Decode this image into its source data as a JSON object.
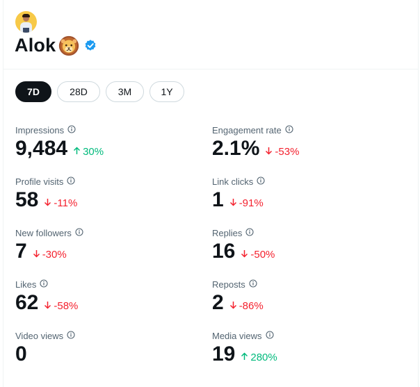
{
  "profile": {
    "name": "Alok",
    "name_emoji": "lion-face",
    "verified": true
  },
  "colors": {
    "up": "#00ba7c",
    "down": "#f4212e",
    "verified": "#1d9bf0",
    "active_tab_bg": "#0f1419"
  },
  "tabs": [
    {
      "label": "7D",
      "active": true
    },
    {
      "label": "28D",
      "active": false
    },
    {
      "label": "3M",
      "active": false
    },
    {
      "label": "1Y",
      "active": false
    }
  ],
  "metrics": [
    {
      "label": "Impressions",
      "value": "9,484",
      "change": "30%",
      "direction": "up"
    },
    {
      "label": "Engagement rate",
      "value": "2.1%",
      "change": "-53%",
      "direction": "down"
    },
    {
      "label": "Profile visits",
      "value": "58",
      "change": "-11%",
      "direction": "down"
    },
    {
      "label": "Link clicks",
      "value": "1",
      "change": "-91%",
      "direction": "down"
    },
    {
      "label": "New followers",
      "value": "7",
      "change": "-30%",
      "direction": "down"
    },
    {
      "label": "Replies",
      "value": "16",
      "change": "-50%",
      "direction": "down"
    },
    {
      "label": "Likes",
      "value": "62",
      "change": "-58%",
      "direction": "down"
    },
    {
      "label": "Reposts",
      "value": "2",
      "change": "-86%",
      "direction": "down"
    },
    {
      "label": "Video views",
      "value": "0",
      "change": "",
      "direction": "none"
    },
    {
      "label": "Media views",
      "value": "19",
      "change": "280%",
      "direction": "up"
    }
  ]
}
